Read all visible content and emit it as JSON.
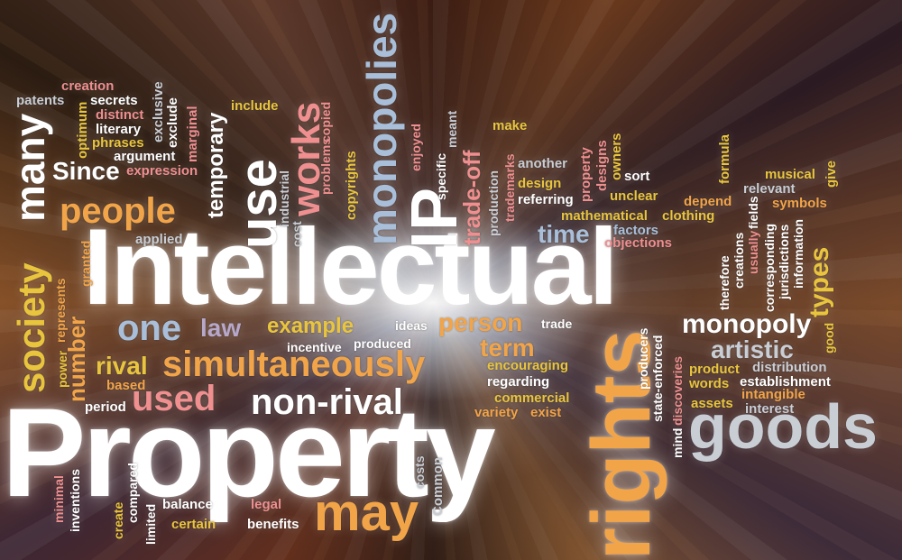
{
  "palette": {
    "white": "#ffffff",
    "grey": "#c9cdd4",
    "orange": "#f2a449",
    "yellow": "#e9c53e",
    "pink": "#ef8f8f",
    "lavender": "#b7a7c9",
    "blue": "#a9bfd9"
  },
  "words": {
    "intellectual": "Intellectual",
    "property": "Property",
    "rights": "rights",
    "goods": "goods",
    "may": "may",
    "use": "use",
    "ip": "IP",
    "monopolies": "monopolies",
    "works": "works",
    "people": "people",
    "many": "many",
    "society": "society",
    "since": "Since",
    "one": "one",
    "law": "law",
    "example": "example",
    "person": "person",
    "simultaneously": "simultaneously",
    "rival": "rival",
    "used": "used",
    "non_rival": "non-rival",
    "monopoly": "monopoly",
    "artistic": "artistic",
    "time": "time",
    "term": "term",
    "types": "types",
    "patents": "patents",
    "creation": "creation",
    "secrets": "secrets",
    "distinct": "distinct",
    "literary": "literary",
    "phrases": "phrases",
    "argument": "argument",
    "expression": "expression",
    "exclusive": "exclusive",
    "exclude": "exclude",
    "optimum": "optimum",
    "marginal": "marginal",
    "temporary": "temporary",
    "include": "include",
    "problems": "problems",
    "copied": "copied",
    "copyrights": "copyrights",
    "industrial": "industrial",
    "cost": "cost",
    "applied": "applied",
    "enjoyed": "enjoyed",
    "meant": "meant",
    "trade_off": "trade-off",
    "specific": "specific",
    "make": "make",
    "production": "production",
    "trademarks": "trademarks",
    "another": "another",
    "design": "design",
    "property_small": "property",
    "designs": "designs",
    "owners": "owners",
    "sort": "sort",
    "referring": "referring",
    "unclear": "unclear",
    "mathematical": "mathematical",
    "clothing": "clothing",
    "factors": "factors",
    "objections": "objections",
    "formula": "formula",
    "depend": "depend",
    "relevant": "relevant",
    "musical": "musical",
    "give": "give",
    "symbols": "symbols",
    "therefore": "therefore",
    "creations": "creations",
    "usually": "usually",
    "fields": "fields",
    "corresponding": "corresponding",
    "jurisdictions": "jurisdictions",
    "information": "information",
    "good": "good",
    "power": "power",
    "represents": "represents",
    "number": "number",
    "granted": "granted",
    "incentive": "incentive",
    "produced": "produced",
    "ideas": "ideas",
    "trade": "trade",
    "encouraging": "encouraging",
    "regarding": "regarding",
    "commercial": "commercial",
    "variety": "variety",
    "exist": "exist",
    "based": "based",
    "period": "period",
    "producers": "producers",
    "state_enforced": "state-enforced",
    "mind": "mind",
    "discoveries": "discoveries",
    "product": "product",
    "distribution": "distribution",
    "words_small": "words",
    "establishment": "establishment",
    "assets": "assets",
    "intangible": "intangible",
    "interest": "interest",
    "minimal": "minimal",
    "inventions": "inventions",
    "create": "create",
    "compared": "compared",
    "limited": "limited",
    "balance": "balance",
    "certain": "certain",
    "legal": "legal",
    "benefits": "benefits",
    "costs": "costs",
    "common": "Common"
  }
}
